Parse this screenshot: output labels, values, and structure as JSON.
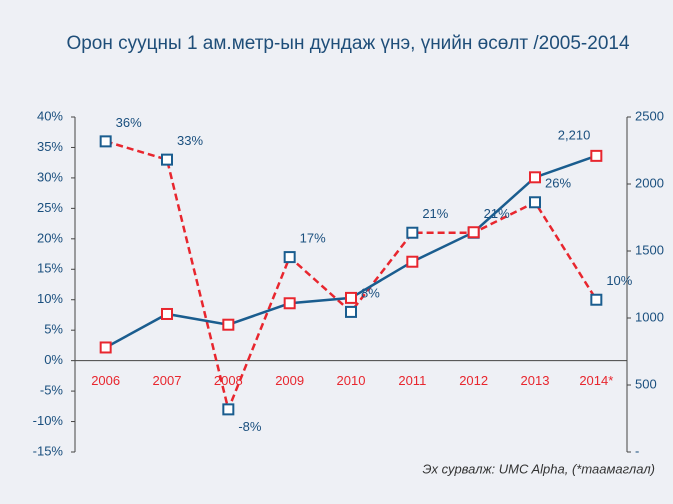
{
  "chart_data": {
    "type": "line",
    "title": "Орон сууцны 1 ам.метр-ын дундаж үнэ, үнийн өсөлт /2005-2014",
    "source": "Эх сурвалж: UMC Alpha, (*таамаглал)",
    "categories": [
      "2006",
      "2007",
      "2008",
      "2009",
      "2010",
      "2011",
      "2012",
      "2013",
      "2014*"
    ],
    "category_color": "#e8262e",
    "series": [
      {
        "color": "#e8262e",
        "marker_color": "#1a5d8f",
        "dashed": true,
        "values": [
          36,
          33,
          -8,
          17,
          8,
          21,
          21,
          26,
          10
        ],
        "value_labels": [
          "36%",
          "33%",
          "-8%",
          "17%",
          "8%",
          "21%",
          "21%",
          "26%",
          "10%"
        ]
      },
      {
        "color": "#1a5d8f",
        "marker_color": "#e8262e",
        "dashed": false,
        "axis": "y2",
        "values": [
          780,
          1030,
          950,
          1110,
          1150,
          1420,
          1640,
          2050,
          2210
        ],
        "value_labels": [
          null,
          null,
          null,
          null,
          null,
          null,
          null,
          null,
          "2,210"
        ]
      }
    ],
    "ylim": [
      -15,
      40
    ],
    "yticks": [
      {
        "value": -15,
        "label": "-15%"
      },
      {
        "value": -10,
        "label": "-10%"
      },
      {
        "value": -5,
        "label": "-5%"
      },
      {
        "value": 0,
        "label": "0%"
      },
      {
        "value": 5,
        "label": "5%"
      },
      {
        "value": 10,
        "label": "10%"
      },
      {
        "value": 15,
        "label": "15%"
      },
      {
        "value": 20,
        "label": "20%"
      },
      {
        "value": 25,
        "label": "25%"
      },
      {
        "value": 30,
        "label": "30%"
      },
      {
        "value": 35,
        "label": "35%"
      },
      {
        "value": 40,
        "label": "40%"
      }
    ],
    "y2lim": [
      0,
      2500
    ],
    "y2ticks": [
      {
        "value": 0,
        "label": "-"
      },
      500,
      1000,
      1500,
      2000,
      2500
    ]
  }
}
